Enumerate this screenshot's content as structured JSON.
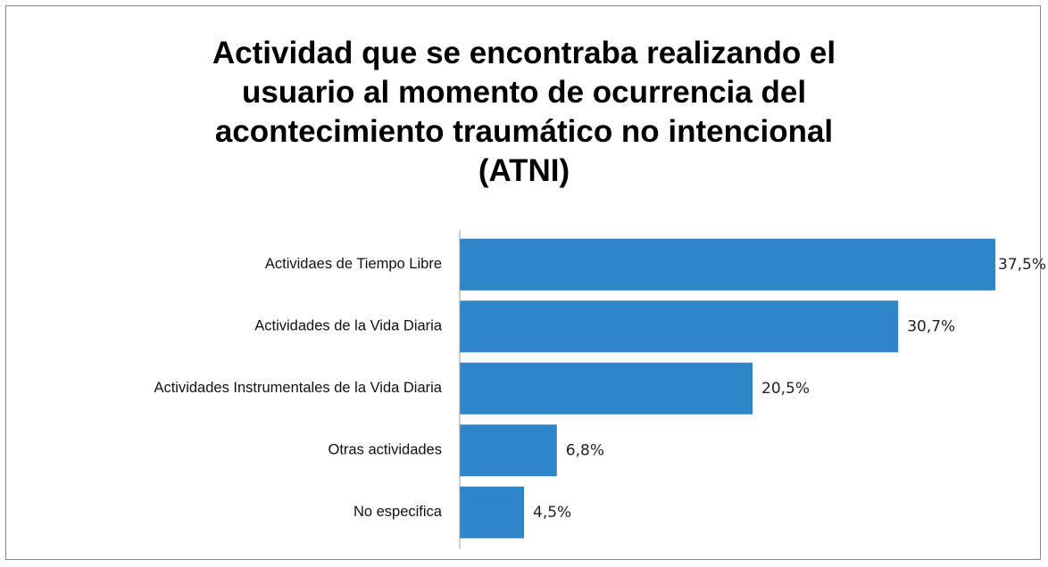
{
  "chart_data": {
    "type": "bar",
    "orientation": "horizontal",
    "title": "Actividad que se encontraba realizando el\nusuario al momento de ocurrencia  del\nacontecimiento traumático no intencional\n(ATNI)",
    "categories": [
      "Actividaes de Tiempo Libre",
      "Actividades de la Vida Diaria",
      "Actividades Instrumentales de la Vida Diaria",
      "Otras actividades",
      "No especifica"
    ],
    "values": [
      37.5,
      30.7,
      20.5,
      6.8,
      4.5
    ],
    "value_labels": [
      "37,5%",
      "30,7%",
      "20,5%",
      "6,8%",
      "4,5%"
    ],
    "color": "#2e86c8"
  }
}
